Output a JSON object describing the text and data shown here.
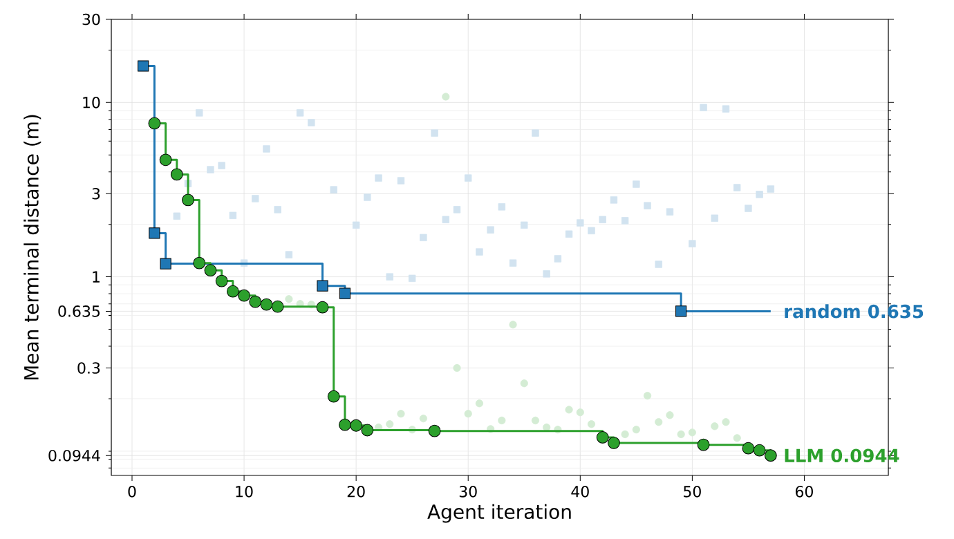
{
  "chart_data": {
    "type": "step",
    "xlabel": "Agent iteration",
    "ylabel": "Mean terminal distance (m)",
    "log": "y",
    "grid": true,
    "xlim": [
      -1.85,
      67.5
    ],
    "ylim": [
      0.0726,
      30
    ],
    "xticks": [
      0,
      10,
      20,
      30,
      40,
      50,
      60
    ],
    "yticks": [
      0.0944,
      0.3,
      0.635,
      1,
      3,
      10,
      30,
      {
        "value": 0.08,
        "label": null
      },
      {
        "value": 0.09,
        "label": null
      },
      {
        "value": 0.1,
        "label": null
      },
      {
        "value": 0.2,
        "label": null
      },
      {
        "value": 0.4,
        "label": null
      },
      {
        "value": 0.5,
        "label": null
      },
      {
        "value": 0.6,
        "label": null
      },
      {
        "value": 0.7,
        "label": null
      },
      {
        "value": 0.8,
        "label": null
      },
      {
        "value": 0.9,
        "label": null
      },
      {
        "value": 2,
        "label": null
      },
      {
        "value": 4,
        "label": null
      },
      {
        "value": 5,
        "label": null
      },
      {
        "value": 6,
        "label": null
      },
      {
        "value": 7,
        "label": null
      },
      {
        "value": 8,
        "label": null
      },
      {
        "value": 9,
        "label": null
      },
      {
        "value": 20,
        "label": null
      }
    ],
    "series": [
      {
        "type": "scatter",
        "marker": "square",
        "color": "#d2e3f0",
        "x": [
          4,
          5,
          6,
          7,
          8,
          9,
          10,
          11,
          12,
          13,
          14,
          15,
          16,
          18,
          20,
          21,
          22,
          23,
          24,
          25,
          26,
          27,
          28,
          29,
          30,
          31,
          32,
          33,
          34,
          35,
          36,
          37,
          38,
          39,
          40,
          41,
          42,
          43,
          44,
          45,
          46,
          47,
          48,
          50,
          51,
          52,
          53,
          54,
          55,
          56,
          57
        ],
        "values": [
          2.23,
          3.43,
          8.72,
          4.12,
          4.35,
          2.25,
          1.2,
          2.81,
          5.42,
          2.43,
          1.34,
          8.72,
          7.67,
          3.16,
          1.98,
          2.86,
          3.69,
          1.0,
          3.56,
          0.98,
          1.68,
          6.68,
          2.13,
          2.43,
          3.69,
          1.39,
          1.86,
          2.52,
          1.2,
          1.98,
          6.68,
          1.04,
          1.27,
          1.76,
          2.04,
          1.84,
          2.13,
          2.76,
          2.1,
          3.4,
          2.56,
          1.18,
          2.36,
          1.55,
          9.36,
          2.17,
          9.19,
          3.25,
          2.47,
          2.97,
          3.19
        ]
      },
      {
        "type": "scatter",
        "marker": "circle",
        "color": "#d4ecd4",
        "x": [
          14,
          15,
          16,
          22,
          23,
          24,
          25,
          26,
          28,
          29,
          30,
          31,
          32,
          33,
          34,
          35,
          36,
          37,
          38,
          39,
          40,
          41,
          44,
          45,
          46,
          47,
          48,
          49,
          50,
          52,
          53,
          54
        ],
        "values": [
          0.746,
          0.7,
          0.694,
          0.137,
          0.143,
          0.164,
          0.133,
          0.154,
          10.8,
          0.3,
          0.164,
          0.188,
          0.134,
          0.15,
          0.532,
          0.245,
          0.15,
          0.137,
          0.133,
          0.173,
          0.167,
          0.143,
          0.125,
          0.133,
          0.208,
          0.147,
          0.161,
          0.125,
          0.128,
          0.139,
          0.147,
          0.119
        ]
      },
      {
        "color": "#1f77b4",
        "x": [
          1,
          2,
          3,
          17,
          19,
          49,
          57
        ],
        "values": [
          16.2,
          1.78,
          1.19,
          0.888,
          0.803,
          0.635,
          0.635
        ]
      },
      {
        "color": "#2ca02c",
        "x": [
          2,
          3,
          4,
          5,
          6,
          7,
          8,
          9,
          10,
          11,
          12,
          13,
          17,
          18,
          19,
          20,
          21,
          27,
          42,
          43,
          51,
          55,
          56,
          57
        ],
        "values": [
          7.6,
          4.69,
          3.87,
          2.76,
          1.2,
          1.09,
          0.947,
          0.825,
          0.781,
          0.72,
          0.694,
          0.675,
          0.669,
          0.206,
          0.1417,
          0.1404,
          0.132,
          0.1306,
          0.12,
          0.1115,
          0.1088,
          0.1039,
          0.1011,
          0.0944
        ]
      },
      {
        "type": "scatter",
        "marker": "square",
        "color": "#1f77b4",
        "x": [
          1,
          2,
          3,
          17,
          19,
          49
        ],
        "values": [
          16.2,
          1.78,
          1.19,
          0.888,
          0.803,
          0.635
        ]
      },
      {
        "type": "scatter",
        "marker": "circle",
        "color": "#2ca02c",
        "x": [
          2,
          3,
          4,
          5,
          6,
          7,
          8,
          9,
          10,
          11,
          12,
          13,
          17,
          18,
          19,
          20,
          21,
          27,
          42,
          43,
          51,
          55,
          56,
          57
        ],
        "values": [
          7.6,
          4.69,
          3.87,
          2.76,
          1.2,
          1.09,
          0.947,
          0.825,
          0.781,
          0.72,
          0.694,
          0.675,
          0.669,
          0.206,
          0.1417,
          0.1404,
          0.132,
          0.1306,
          0.12,
          0.1115,
          0.1088,
          0.1039,
          0.1011,
          0.0944
        ]
      }
    ],
    "annotations": [
      {
        "text": "random  0.635",
        "x": 57,
        "y": 0.635
      },
      {
        "text": "LLM  0.0944",
        "x": 57,
        "y": 0.0944
      }
    ]
  }
}
